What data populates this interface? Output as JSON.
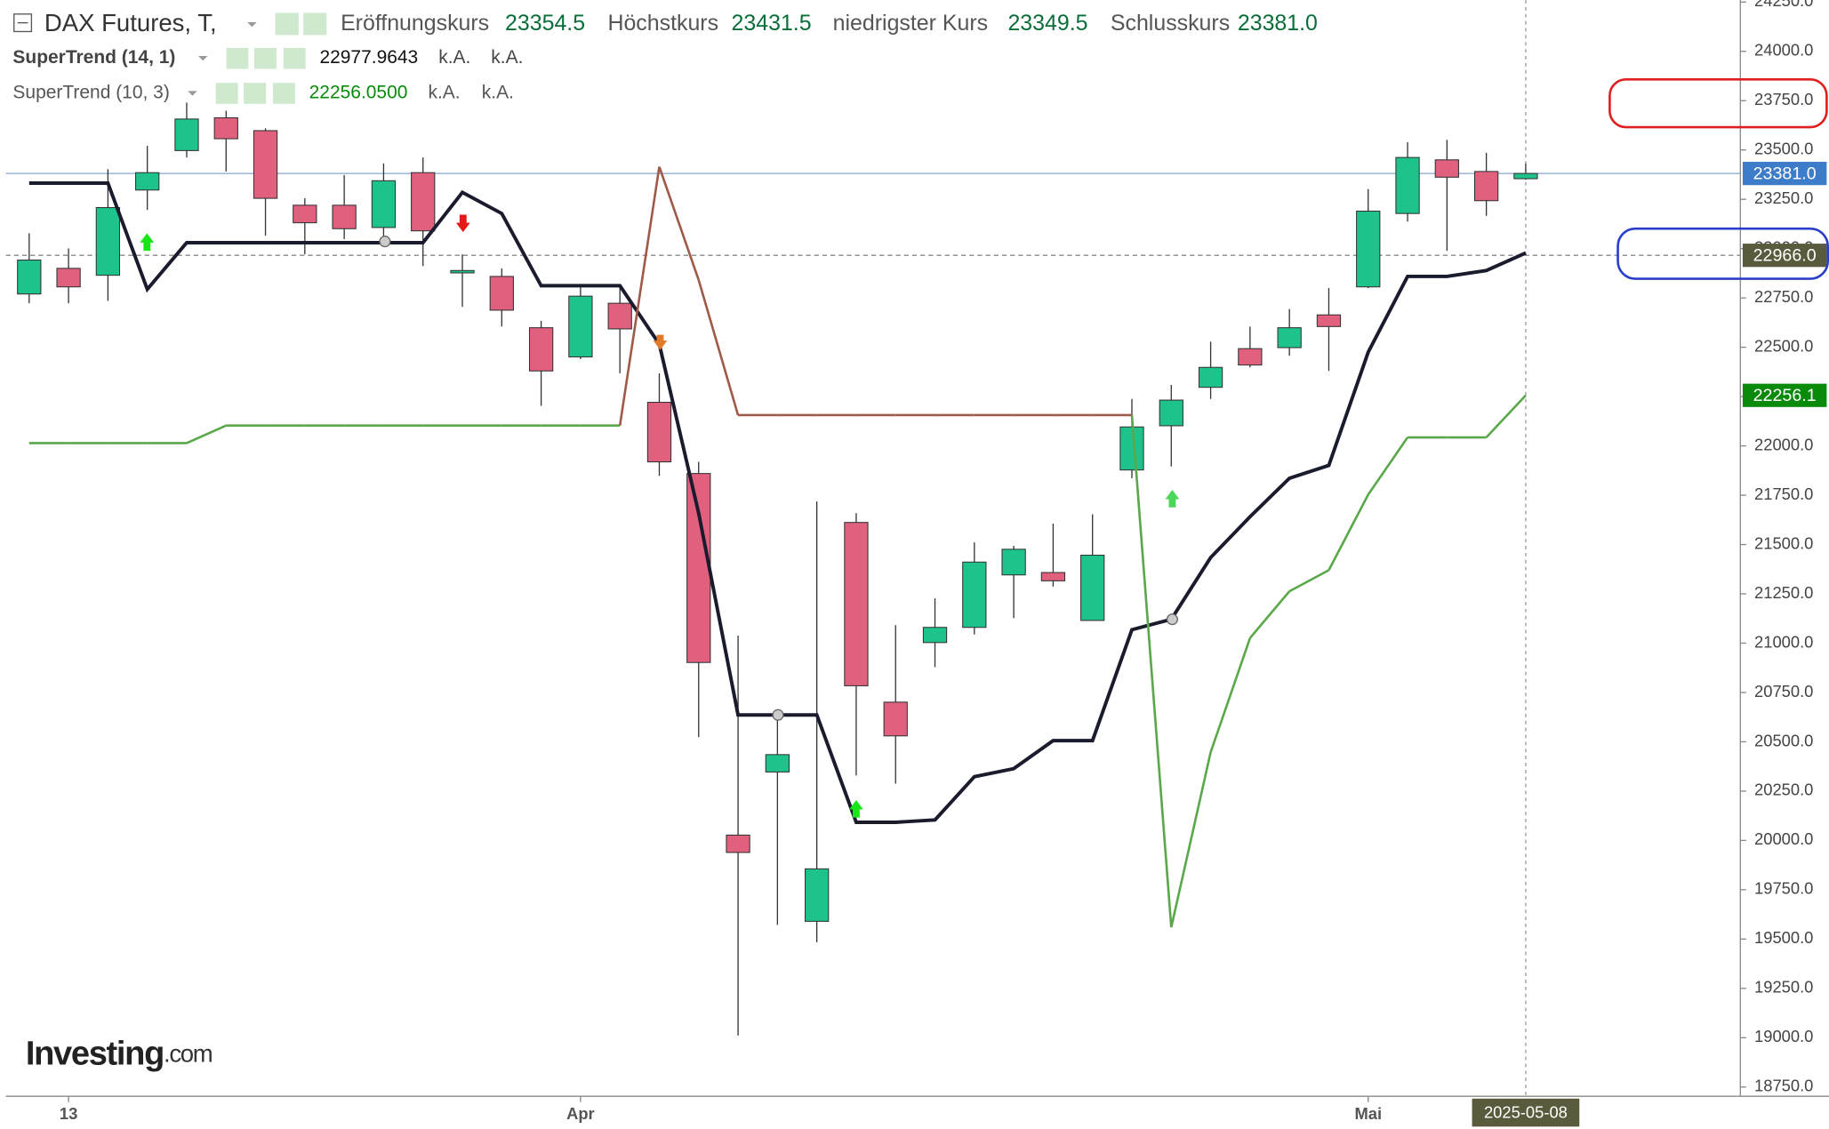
{
  "header": {
    "symbol": "DAX Futures, T,",
    "fields": [
      {
        "label": "Eröffnungskurs",
        "value": "23354.5"
      },
      {
        "label": "Höchstkurs",
        "value": "23431.5"
      },
      {
        "label": "niedrigster Kurs",
        "value": "23349.5"
      },
      {
        "label": "Schlusskurs",
        "value": "23381.0"
      }
    ]
  },
  "chart_data": {
    "type": "candlestick",
    "categories": [
      null,
      "13",
      null,
      null,
      null,
      null,
      null,
      null,
      null,
      null,
      null,
      null,
      null,
      null,
      "Apr",
      null,
      null,
      null,
      null,
      null,
      null,
      null,
      null,
      null,
      null,
      null,
      null,
      null,
      null,
      null,
      null,
      null,
      null,
      null,
      "Mai",
      null,
      null,
      null,
      "2025-05-08"
    ],
    "open": [
      22770,
      22900,
      22865,
      23297,
      23497,
      23663,
      23598,
      23220,
      23220,
      23107,
      23385,
      22877,
      22859,
      22599,
      22451,
      22723,
      22221,
      21860,
      20027,
      20347,
      19590,
      21612,
      20701,
      21003,
      21080,
      21346,
      21358,
      21115,
      21878,
      22102,
      22297,
      22493,
      22498,
      22664,
      22806,
      23178,
      23450,
      23391,
      23354.5
    ],
    "high": [
      23078,
      23001,
      23403,
      23521,
      23740,
      23699,
      23610,
      23255,
      23373,
      23432,
      23462,
      22971,
      22900,
      22634,
      22812,
      22812,
      22368,
      21919,
      21038,
      20625,
      21718,
      21659,
      21091,
      21227,
      21511,
      21493,
      21606,
      21653,
      22238,
      22309,
      22528,
      22605,
      22694,
      22800,
      23302,
      23539,
      23551,
      23486,
      23431.5
    ],
    "low": [
      22723,
      22723,
      22735,
      23196,
      23462,
      23391,
      23066,
      22971,
      23048,
      23019,
      22912,
      22705,
      22605,
      22203,
      22440,
      22368,
      21848,
      20524,
      19011,
      19572,
      19484,
      20329,
      20288,
      20879,
      21044,
      21127,
      21287,
      21115,
      21836,
      21896,
      22238,
      22398,
      22457,
      22380,
      22800,
      23137,
      22989,
      23166,
      23349.5
    ],
    "close": [
      22942,
      22806,
      23208,
      23385,
      23657,
      23557,
      23255,
      23131,
      23101,
      23344,
      23090,
      22889,
      22688,
      22380,
      22759,
      22593,
      21919,
      20902,
      19939,
      20435,
      19856,
      20784,
      20530,
      21080,
      21411,
      21476,
      21316,
      21446,
      22096,
      22232,
      22398,
      22410,
      22599,
      22605,
      23190,
      23462,
      23362,
      23243,
      23381
    ],
    "up_color": "#1ec38b",
    "down_color": "#e0607e",
    "ylim": [
      18703,
      24260
    ],
    "yticks": [
      {
        "value": 18750,
        "label": "18750.0"
      },
      {
        "value": 19000,
        "label": "19000.0"
      },
      {
        "value": 19250,
        "label": "19250.0"
      },
      {
        "value": 19500,
        "label": "19500.0"
      },
      {
        "value": 19750,
        "label": "19750.0"
      },
      {
        "value": 20000,
        "label": "20000.0"
      },
      {
        "value": 20250,
        "label": "20250.0"
      },
      {
        "value": 20500,
        "label": "20500.0"
      },
      {
        "value": 20750,
        "label": "20750.0"
      },
      {
        "value": 21000,
        "label": "21000.0"
      },
      {
        "value": 21250,
        "label": "21250.0"
      },
      {
        "value": 21500,
        "label": "21500.0"
      },
      {
        "value": 21750,
        "label": "21750.0"
      },
      {
        "value": 22000,
        "label": "22000.0"
      },
      {
        "value": 22250,
        "label": "22250.0"
      },
      {
        "value": 22500,
        "label": "22500.0"
      },
      {
        "value": 22750,
        "label": "22750.0"
      },
      {
        "value": 23000,
        "label": "23000.0"
      },
      {
        "value": 23250,
        "label": "23250.0"
      },
      {
        "value": 23500,
        "label": "23500.0"
      },
      {
        "value": 23750,
        "label": "23750.0"
      },
      {
        "value": 24000,
        "label": "24000.0"
      },
      {
        "value": 24250,
        "label": "24250.0"
      }
    ],
    "series": [
      {
        "name": "SuperTrend (14, 1)",
        "last_value_label": "22977.9643",
        "extra": [
          "k.A.",
          "k.A."
        ],
        "color": "#1b1b2e",
        "values": [
          23332,
          23332,
          23332,
          22794,
          23030,
          23030,
          23030,
          23030,
          23030,
          23030,
          23030,
          23285,
          23178,
          22812,
          22812,
          22812,
          22516,
          21659,
          20636,
          20636,
          20636,
          20092,
          20092,
          20104,
          20323,
          20364,
          20506,
          20506,
          21068,
          21121,
          21434,
          21641,
          21836,
          21901,
          22475,
          22859,
          22859,
          22889,
          22977.9643
        ]
      },
      {
        "name": "SuperTrend (10, 3)",
        "last_value_label": "22256.0500",
        "extra": [
          "k.A.",
          "k.A."
        ],
        "color": "#0a8a0a",
        "colors": [
          "#5aa84a",
          "#5aa84a",
          "#5aa84a",
          "#5aa84a",
          "#5aa84a",
          "#5aa84a",
          "#5aa84a",
          "#5aa84a",
          "#5aa84a",
          "#5aa84a",
          "#5aa84a",
          "#5aa84a",
          "#5aa84a",
          "#5aa84a",
          "#5aa84a",
          "#a05a4a",
          "#a05a4a",
          "#a05a4a",
          "#a05a4a",
          "#a05a4a",
          "#a05a4a",
          "#a05a4a",
          "#a05a4a",
          "#a05a4a",
          "#a05a4a",
          "#a05a4a",
          "#a05a4a",
          "#a05a4a",
          "#5aa84a",
          "#5aa84a",
          "#5aa84a",
          "#5aa84a",
          "#5aa84a",
          "#5aa84a",
          "#5aa84a",
          "#5aa84a",
          "#5aa84a",
          "#5aa84a",
          "#5aa84a"
        ],
        "values": [
          22014,
          22014,
          22014,
          22014,
          22014,
          22103,
          22103,
          22103,
          22103,
          22103,
          22103,
          22103,
          22103,
          22103,
          22103,
          22103,
          23415,
          22841,
          22156,
          22156,
          22156,
          22156,
          22156,
          22156,
          22156,
          22156,
          22156,
          22156,
          22156,
          19560,
          20447,
          21026,
          21263,
          21370,
          21753,
          22043,
          22043,
          22043,
          22256.05
        ]
      }
    ],
    "price_labels": [
      {
        "value": 23381,
        "label": "23381.0",
        "color": "#3d7cc9"
      },
      {
        "value": 22966,
        "label": "22966.0",
        "color": "#5a5a3c"
      },
      {
        "value": 22256.1,
        "label": "22256.1",
        "color": "#0a8a0a"
      }
    ],
    "watermark": [
      "Investing",
      ".com"
    ]
  }
}
